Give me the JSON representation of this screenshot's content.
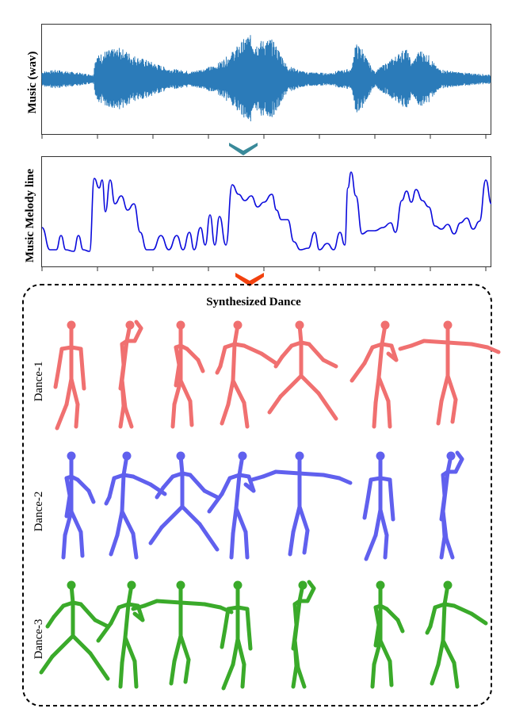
{
  "wave_panel": {
    "ylabel": "Music (wav)",
    "color": "#2b7bb9"
  },
  "melody_panel": {
    "ylabel": "Music Melody line",
    "color": "#0a0adc"
  },
  "arrows": {
    "first_color": "#3a8a9a",
    "second_color": "#f2410e"
  },
  "dance_panel": {
    "title": "Synthesized Dance",
    "rows": [
      {
        "label": "Dance-1",
        "color": "#f07070"
      },
      {
        "label": "Dance-2",
        "color": "#6060ee"
      },
      {
        "label": "Dance-3",
        "color": "#3aaa2a"
      }
    ]
  }
}
